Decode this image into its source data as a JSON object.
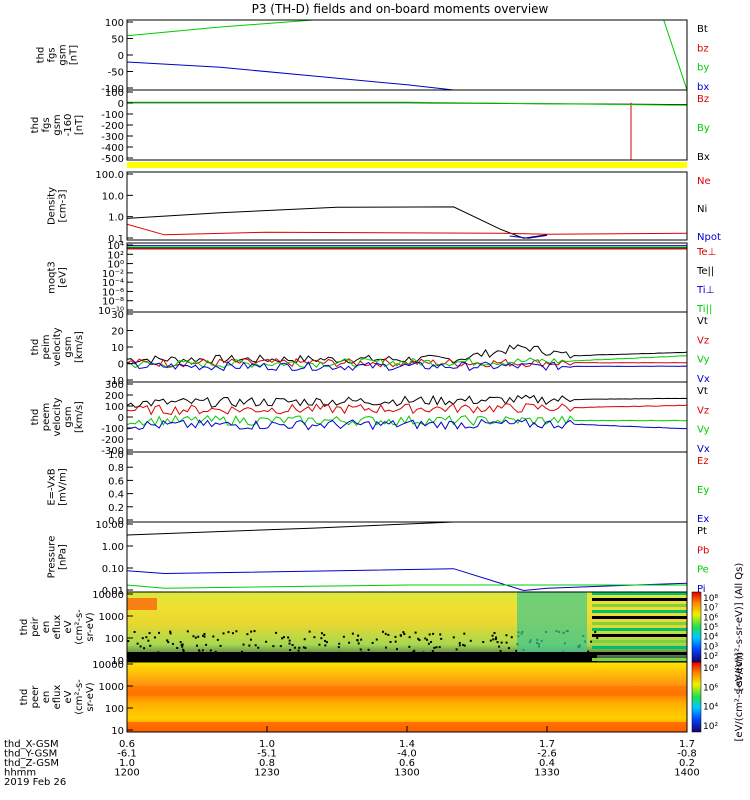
{
  "title": "P3 (TH-D) fields and on-board moments overview",
  "colors": {
    "black": "#000000",
    "red": "#dd0000",
    "green": "#00cc00",
    "blue": "#0000cc",
    "yellow": "#ffff00"
  },
  "time_axis": {
    "ticks": [
      "1200",
      "1230",
      "1300",
      "1330",
      "1400"
    ],
    "date_label": "2019 Feb 26",
    "rows": [
      {
        "label": "thd_X-GSM",
        "values": [
          "0.6",
          "1.0",
          "1.4",
          "1.7",
          "1.7"
        ]
      },
      {
        "label": "thd_Y-GSM",
        "values": [
          "-6.1",
          "-5.1",
          "-4.0",
          "-2.6",
          "-0.8"
        ]
      },
      {
        "label": "thd_Z-GSM",
        "values": [
          "1.0",
          "0.8",
          "0.6",
          "0.4",
          "0.2"
        ]
      },
      {
        "label": "hhmm",
        "values": [
          "1200",
          "1230",
          "1300",
          "1330",
          "1400"
        ]
      }
    ]
  },
  "panels": [
    {
      "id": "fgs",
      "ylabel": [
        "thd",
        "fgs",
        "gsm",
        "[nT]"
      ],
      "ticks": [
        "100",
        "50",
        "0",
        "-50",
        "-100"
      ],
      "legend": [
        {
          "text": "Bt",
          "color": "black"
        },
        {
          "text": "bz",
          "color": "red"
        },
        {
          "text": "by",
          "color": "green"
        },
        {
          "text": "bx",
          "color": "blue"
        }
      ]
    },
    {
      "id": "fgs_dc",
      "ylabel": [
        "thd",
        "fgs",
        "gsm",
        "-160",
        "[nT]"
      ],
      "ticks": [
        "100",
        "0",
        "-100",
        "-200",
        "-300",
        "-400",
        "-500"
      ],
      "legend": [
        {
          "text": "Bz",
          "color": "red"
        },
        {
          "text": "By",
          "color": "green"
        },
        {
          "text": "Bx",
          "color": "black"
        }
      ]
    },
    {
      "id": "density",
      "ylabel": [
        "Density",
        "[cm-3]"
      ],
      "ticks": [
        "100.0",
        "10.0",
        "1.0",
        "0.1"
      ],
      "legend": [
        {
          "text": "Ne",
          "color": "red"
        },
        {
          "text": "Ni",
          "color": "black"
        },
        {
          "text": "Npot",
          "color": "blue"
        }
      ]
    },
    {
      "id": "temp",
      "ylabel": [
        "moqt3",
        "[eV]"
      ],
      "ticks": [
        "10⁴",
        "10²",
        "10⁰",
        "10⁻²",
        "10⁻⁴",
        "10⁻⁶",
        "10⁻⁸",
        "10⁻¹⁰"
      ],
      "legend": [
        {
          "text": "Te⊥",
          "color": "red"
        },
        {
          "text": "Te||",
          "color": "black"
        },
        {
          "text": "Ti⊥",
          "color": "blue"
        },
        {
          "text": "Ti||",
          "color": "green"
        }
      ]
    },
    {
      "id": "peim_v",
      "ylabel": [
        "thd",
        "peim",
        "velocity",
        "gsm",
        "[km/s]"
      ],
      "ticks": [
        "30",
        "20",
        "10",
        "0",
        "-10"
      ],
      "legend": [
        {
          "text": "Vt",
          "color": "black"
        },
        {
          "text": "Vz",
          "color": "red"
        },
        {
          "text": "Vy",
          "color": "green"
        },
        {
          "text": "Vx",
          "color": "blue"
        }
      ]
    },
    {
      "id": "peem_v",
      "ylabel": [
        "thd",
        "peem",
        "velocity",
        "gsm",
        "[km/s]"
      ],
      "ticks": [
        "300",
        "200",
        "100",
        "0",
        "-100",
        "-200",
        "-300"
      ],
      "legend": [
        {
          "text": "Vt",
          "color": "black"
        },
        {
          "text": "Vz",
          "color": "red"
        },
        {
          "text": "Vy",
          "color": "green"
        },
        {
          "text": "Vx",
          "color": "blue"
        }
      ]
    },
    {
      "id": "efield",
      "ylabel": [
        "E=-VxB",
        "[mV/m]"
      ],
      "ticks": [
        "1.0",
        "0.8",
        "0.6",
        "0.4",
        "0.2",
        "0.0"
      ],
      "legend": [
        {
          "text": "Ez",
          "color": "red"
        },
        {
          "text": "Ey",
          "color": "green"
        },
        {
          "text": "Ex",
          "color": "blue"
        }
      ]
    },
    {
      "id": "pressure",
      "ylabel": [
        "Pressure",
        "[nPa]"
      ],
      "ticks": [
        "10.00",
        "1.00",
        "0.10",
        "0.01"
      ],
      "legend": [
        {
          "text": "Pt",
          "color": "black"
        },
        {
          "text": "Pb",
          "color": "red"
        },
        {
          "text": "Pe",
          "color": "green"
        },
        {
          "text": "Pi",
          "color": "blue"
        }
      ]
    },
    {
      "id": "peir_spec",
      "ylabel": [
        "thd",
        "peir",
        "en",
        "eflux",
        "eV",
        "(cm²-s-",
        "sr-eV)"
      ],
      "ticks": [
        "10000",
        "1000",
        "100",
        "10"
      ],
      "colorbar": {
        "label": "[eV/(cm²-s-sr-eV)] (All Qs)",
        "ticks": [
          "10⁸",
          "10⁷",
          "10⁶",
          "10⁵",
          "10⁴",
          "10³",
          "10²"
        ]
      }
    },
    {
      "id": "peer_spec",
      "ylabel": [
        "thd",
        "peer",
        "en",
        "eflux",
        "eV",
        "(cm²-s-",
        "sr-eV)"
      ],
      "ticks": [
        "10000",
        "1000",
        "100",
        "10"
      ],
      "colorbar": {
        "label": "[eV/(cm²-s-sr-eV)]",
        "ticks": [
          "10⁸",
          "10⁶",
          "10⁴",
          "10²"
        ]
      }
    }
  ],
  "chart_data": {
    "type": "line",
    "title": "P3 (TH-D) fields and on-board moments overview",
    "x_label": "hhmm",
    "x_range": [
      "12:00",
      "14:00"
    ],
    "panels": [
      {
        "id": "fgs",
        "ylim": [
          -100,
          100
        ],
        "series": [
          {
            "name": "by",
            "color": "green",
            "x": [
              "12:00",
              "12:20",
              "12:40",
              "13:55",
              "14:00"
            ],
            "y": [
              55,
              80,
              100,
              100,
              -100
            ]
          },
          {
            "name": "bx",
            "color": "blue",
            "x": [
              "12:00",
              "12:20",
              "12:40",
              "13:00",
              "13:10"
            ],
            "y": [
              -20,
              -35,
              -60,
              -85,
              -100
            ]
          }
        ]
      },
      {
        "id": "fgs_dc",
        "ylim": [
          -500,
          100
        ],
        "series": [
          {
            "name": "Bx",
            "color": "black",
            "x": [
              "12:00",
              "13:00",
              "13:40",
              "14:00"
            ],
            "y": [
              -10,
              -10,
              -20,
              -25
            ]
          },
          {
            "name": "Bz",
            "color": "red",
            "x": [
              "13:48",
              "13:48",
              "13:48"
            ],
            "y": [
              -10,
              -500,
              -10
            ]
          },
          {
            "name": "By",
            "color": "green",
            "x": [
              "12:00",
              "13:00",
              "14:00"
            ],
            "y": [
              -5,
              -5,
              -30
            ]
          }
        ]
      },
      {
        "id": "density",
        "log": true,
        "ylim": [
          0.1,
          100
        ],
        "series": [
          {
            "name": "Ni",
            "color": "black",
            "x": [
              "12:00",
              "12:20",
              "12:45",
              "13:10",
              "13:20",
              "13:25",
              "13:30"
            ],
            "y": [
              0.9,
              1.6,
              2.8,
              2.9,
              0.3,
              0.12,
              0.17
            ]
          },
          {
            "name": "Ne",
            "color": "red",
            "x": [
              "12:00",
              "12:08",
              "12:30",
              "13:20",
              "13:30",
              "14:00"
            ],
            "y": [
              0.5,
              0.17,
              0.22,
              0.2,
              0.18,
              0.2
            ]
          },
          {
            "name": "Npot",
            "color": "blue",
            "x": [
              "13:22",
              "13:26",
              "13:30"
            ],
            "y": [
              0.15,
              0.12,
              0.16
            ]
          }
        ]
      },
      {
        "id": "temp",
        "log": true,
        "ylim": [
          1e-10,
          10000
        ],
        "series": [
          {
            "name": "Te||",
            "color": "black",
            "x": [
              "12:00",
              "14:00"
            ],
            "y": [
              1000,
              1000
            ]
          },
          {
            "name": "Te⊥",
            "color": "red",
            "x": [
              "12:00",
              "14:00"
            ],
            "y": [
              600,
              600
            ]
          },
          {
            "name": "Ti⊥",
            "color": "blue",
            "x": [
              "12:00",
              "14:00"
            ],
            "y": [
              3000,
              3000
            ]
          },
          {
            "name": "Ti||",
            "color": "green",
            "x": [
              "12:00",
              "14:00"
            ],
            "y": [
              1500,
              1500
            ]
          }
        ]
      },
      {
        "id": "peim_v",
        "ylim": [
          -10,
          30
        ],
        "series": [
          {
            "name": "Vt",
            "color": "black",
            "x": [
              "12:00",
              "13:10",
              "13:25",
              "13:35",
              "14:00"
            ],
            "y": [
              3,
              3,
              10,
              5,
              7
            ]
          },
          {
            "name": "Vz",
            "color": "red",
            "x": [
              "12:00",
              "13:35",
              "14:00"
            ],
            "y": [
              1,
              1,
              1
            ]
          },
          {
            "name": "Vy",
            "color": "green",
            "x": [
              "12:00",
              "13:35",
              "14:00"
            ],
            "y": [
              0,
              2,
              5
            ]
          },
          {
            "name": "Vx",
            "color": "blue",
            "x": [
              "12:00",
              "13:35",
              "14:00"
            ],
            "y": [
              -1,
              -1,
              -1
            ]
          }
        ]
      },
      {
        "id": "peem_v",
        "ylim": [
          -300,
          300
        ],
        "series": [
          {
            "name": "Vt",
            "color": "black",
            "x": [
              "12:00",
              "13:35",
              "14:00"
            ],
            "y": [
              120,
              150,
              160
            ]
          },
          {
            "name": "Vz",
            "color": "red",
            "x": [
              "12:00",
              "13:35",
              "14:00"
            ],
            "y": [
              60,
              80,
              100
            ]
          },
          {
            "name": "Vy",
            "color": "green",
            "x": [
              "12:00",
              "13:35",
              "14:00"
            ],
            "y": [
              -30,
              -30,
              -30
            ]
          },
          {
            "name": "Vx",
            "color": "blue",
            "x": [
              "12:00",
              "13:35",
              "14:00"
            ],
            "y": [
              -70,
              -60,
              -100
            ]
          }
        ]
      },
      {
        "id": "efield",
        "ylim": [
          0,
          1
        ],
        "series": []
      },
      {
        "id": "pressure",
        "log": true,
        "ylim": [
          0.005,
          30
        ],
        "series": [
          {
            "name": "Pt",
            "color": "black",
            "x": [
              "12:00",
              "12:40",
              "13:10"
            ],
            "y": [
              6,
              14,
              30
            ]
          },
          {
            "name": "Pi",
            "color": "blue",
            "x": [
              "12:00",
              "12:08",
              "12:45",
              "13:10",
              "13:25",
              "13:30",
              "14:00"
            ],
            "y": [
              0.07,
              0.05,
              0.07,
              0.09,
              0.006,
              0.008,
              0.015
            ]
          },
          {
            "name": "Pe",
            "color": "green",
            "x": [
              "12:00",
              "12:08",
              "13:00",
              "14:00"
            ],
            "y": [
              0.012,
              0.008,
              0.012,
              0.012
            ]
          }
        ]
      },
      {
        "id": "peir_spec",
        "type": "heatmap",
        "ylim": [
          5,
          20000
        ]
      },
      {
        "id": "peer_spec",
        "type": "heatmap",
        "ylim": [
          5,
          20000
        ]
      }
    ]
  }
}
